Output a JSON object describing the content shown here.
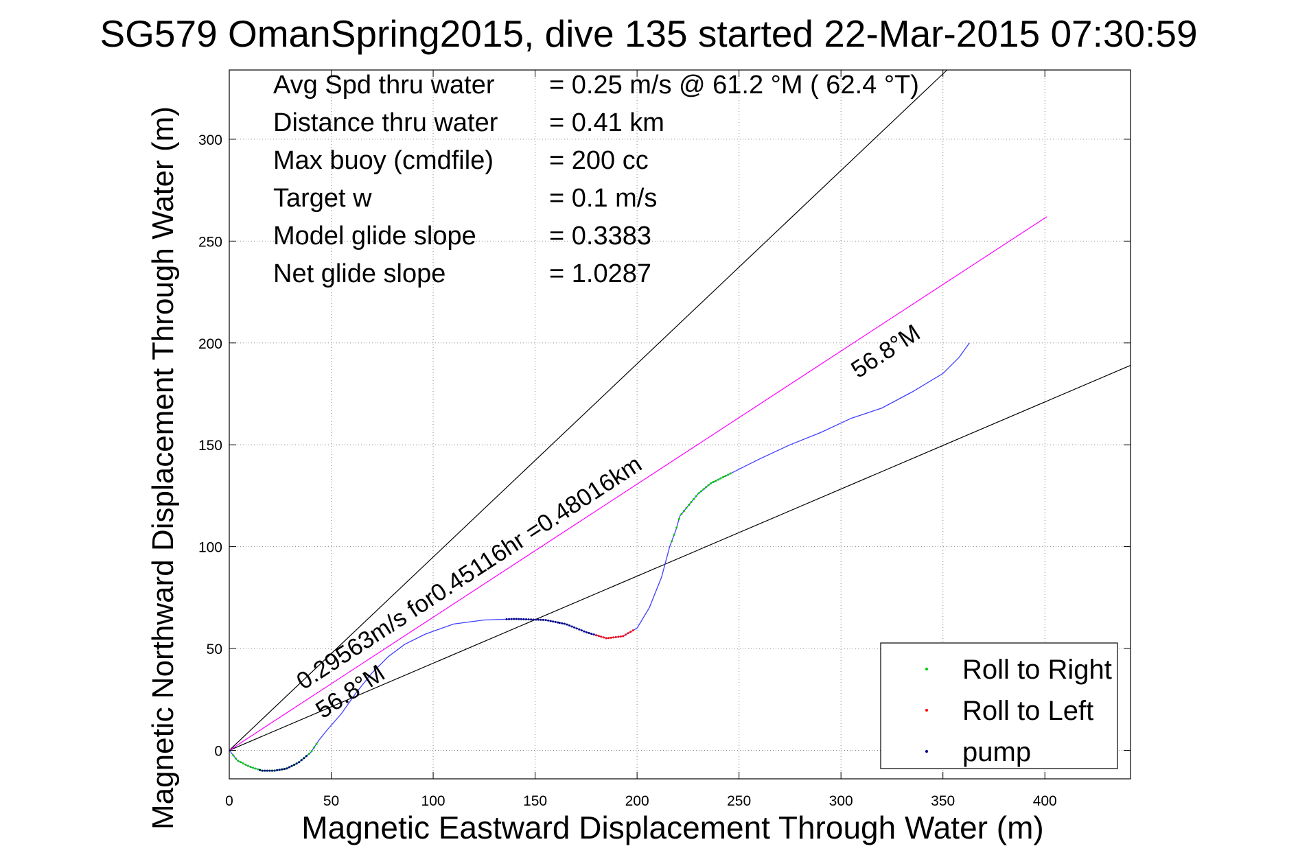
{
  "chart_data": {
    "type": "line",
    "title": "SG579 OmanSpring2015, dive 135 started 22-Mar-2015 07:30:59",
    "xlabel": "Magnetic Eastward Displacement Through Water (m)",
    "ylabel": "Magnetic Northward Displacement Through Water (m)",
    "xlim": [
      0,
      442
    ],
    "ylim": [
      -14,
      334
    ],
    "xticks": [
      0,
      50,
      100,
      150,
      200,
      250,
      300,
      350,
      400
    ],
    "yticks": [
      0,
      50,
      100,
      150,
      200,
      250,
      300
    ],
    "grid": true,
    "legend_position": "bottom-right",
    "info": [
      {
        "label": "Avg Spd thru water",
        "value": "=  0.25 m/s @  61.2 °M ( 62.4 °T)"
      },
      {
        "label": "Distance thru water",
        "value": "=  0.41 km"
      },
      {
        "label": "Max buoy (cmdfile)",
        "value": "= 200 cc"
      },
      {
        "label": "Target w",
        "value": "= 0.1 m/s"
      },
      {
        "label": "Model glide slope",
        "value": "= 0.3383"
      },
      {
        "label": "Net glide slope",
        "value": "= 1.0287"
      }
    ],
    "annotations": {
      "rate": "0.29563m/s for0.45116hr =0.48016km",
      "heading_lower": "56.8°M",
      "heading_upper": "56.8°M"
    },
    "guide_lines": [
      {
        "name": "",
        "color": "#000000",
        "points": [
          [
            0,
            0
          ],
          [
            352,
            334
          ]
        ]
      },
      {
        "name": "",
        "color": "#000000",
        "points": [
          [
            0,
            0
          ],
          [
            442,
            189
          ]
        ]
      },
      {
        "name": "",
        "color": "#ff00ff",
        "points": [
          [
            0,
            0
          ],
          [
            401,
            262
          ]
        ]
      }
    ],
    "series": [
      {
        "name": "",
        "color": "#3f3fff",
        "x": [
          0,
          4,
          10,
          16,
          22,
          28,
          34,
          40,
          44,
          48,
          55,
          62,
          70,
          78,
          86,
          96,
          110,
          125,
          140,
          155,
          165,
          175,
          185,
          193,
          200,
          206,
          212,
          216,
          219,
          221,
          225,
          230,
          236,
          242,
          248,
          260,
          275,
          290,
          305,
          320,
          335,
          350,
          358,
          363
        ],
        "y": [
          0,
          -5,
          -8,
          -10,
          -10,
          -9,
          -6,
          -1,
          5,
          10,
          18,
          28,
          38,
          46,
          52,
          57,
          62,
          64,
          64.5,
          64,
          62,
          58,
          55,
          56,
          60,
          70,
          85,
          100,
          108,
          115,
          120,
          126,
          131,
          134,
          137,
          143,
          150,
          156,
          163,
          168,
          176,
          185,
          193,
          200
        ]
      }
    ],
    "legend": [
      {
        "label": "Roll to Right",
        "color": "#00cc00"
      },
      {
        "label": "Roll to Left",
        "color": "#ff0000"
      },
      {
        "label": "pump",
        "color": "#000080"
      }
    ],
    "markers": [
      {
        "series": "Roll to Right",
        "color": "#00cc00",
        "x_range": [
          2,
          44
        ]
      },
      {
        "series": "pump",
        "color": "#000080",
        "x_range": [
          15,
          38
        ]
      },
      {
        "series": "pump",
        "color": "#000080",
        "x_range": [
          136,
          162
        ]
      },
      {
        "series": "pump",
        "color": "#000080",
        "x_range": [
          162,
          180
        ]
      },
      {
        "series": "Roll to Left",
        "color": "#ff0000",
        "x_range": [
          180,
          198
        ]
      },
      {
        "series": "Roll to Right",
        "color": "#00cc00",
        "x_range": [
          217,
          246
        ]
      }
    ]
  }
}
